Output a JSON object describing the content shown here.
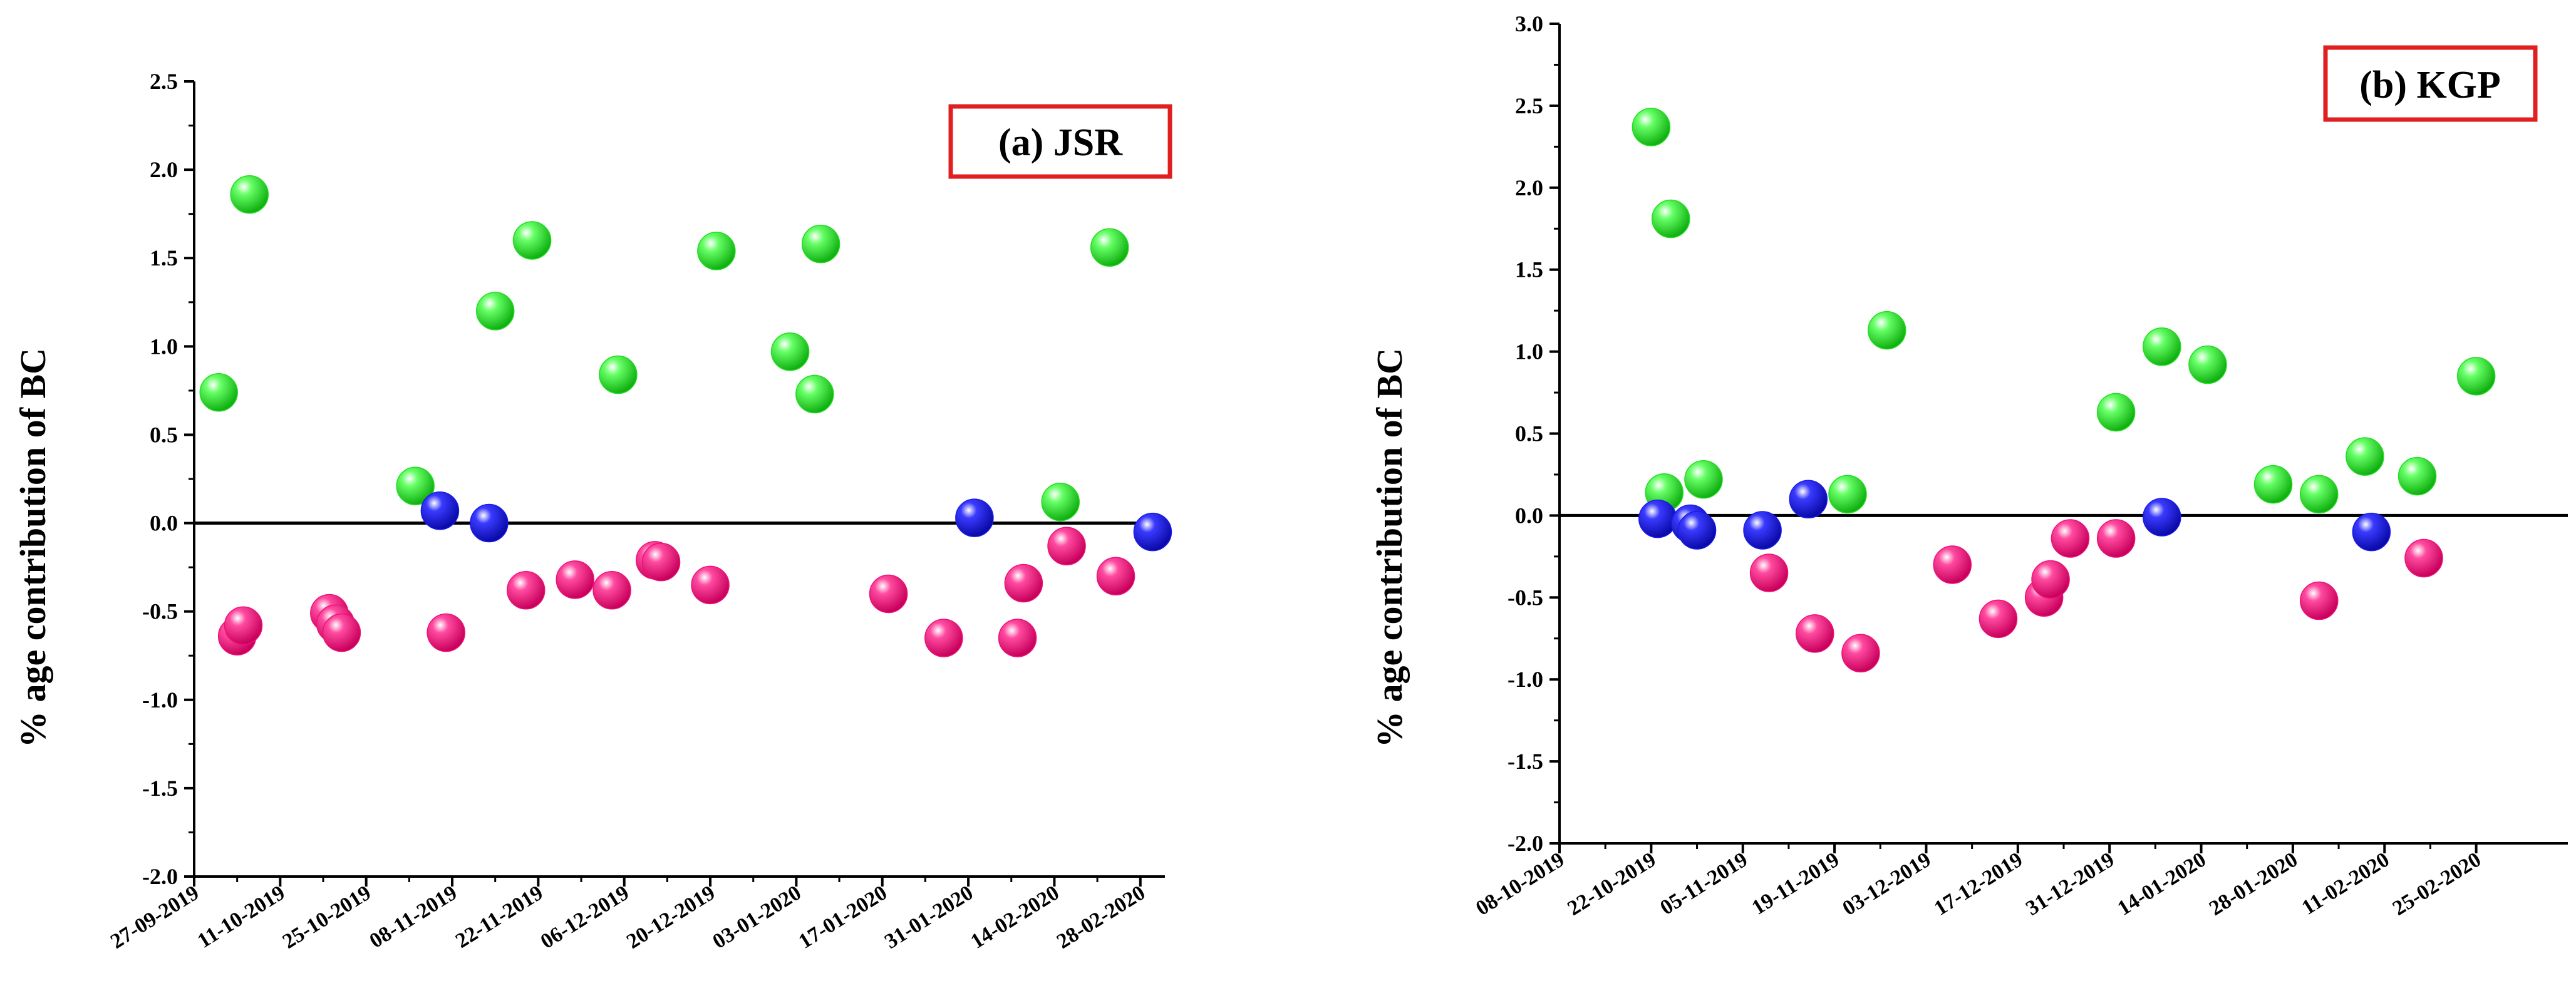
{
  "colors": {
    "positive": "#22dd22",
    "negative": "#ee1177",
    "near_zero": "#1a1aee",
    "title_box": "#e02020"
  },
  "chart_data": [
    {
      "type": "scatter",
      "title": "(a) JSR",
      "ylabel": "% age contribution of BC",
      "ylim": [
        -2.0,
        2.5
      ],
      "yticks": [
        "-2.0",
        "-1.5",
        "-1.0",
        "-0.5",
        "0.0",
        "0.5",
        "1.0",
        "1.5",
        "2.0",
        "2.5"
      ],
      "xlim_days": [
        0,
        158
      ],
      "xtick_labels": [
        "27-09-2019",
        "11-10-2019",
        "25-10-2019",
        "08-11-2019",
        "22-11-2019",
        "06-12-2019",
        "20-12-2019",
        "03-01-2020",
        "17-01-2020",
        "31-01-2020",
        "14-02-2020",
        "28-02-2020"
      ],
      "reference_line": 0,
      "series": [
        {
          "name": "positive",
          "color_key": "positive",
          "points": [
            {
              "x": 4,
              "y": 0.74
            },
            {
              "x": 9,
              "y": 1.86
            },
            {
              "x": 36,
              "y": 0.21
            },
            {
              "x": 49,
              "y": 1.2
            },
            {
              "x": 55,
              "y": 1.6
            },
            {
              "x": 69,
              "y": 0.84
            },
            {
              "x": 85,
              "y": 1.54
            },
            {
              "x": 97,
              "y": 0.97
            },
            {
              "x": 101,
              "y": 0.73
            },
            {
              "x": 102,
              "y": 1.58
            },
            {
              "x": 141,
              "y": 0.12
            },
            {
              "x": 149,
              "y": 1.56
            }
          ]
        },
        {
          "name": "near zero",
          "color_key": "near_zero",
          "points": [
            {
              "x": 40,
              "y": 0.07
            },
            {
              "x": 48,
              "y": 0.0
            },
            {
              "x": 127,
              "y": 0.03
            },
            {
              "x": 156,
              "y": -0.05
            }
          ]
        },
        {
          "name": "negative",
          "color_key": "negative",
          "points": [
            {
              "x": 7,
              "y": -0.64
            },
            {
              "x": 8,
              "y": -0.58
            },
            {
              "x": 22,
              "y": -0.51
            },
            {
              "x": 23,
              "y": -0.57
            },
            {
              "x": 24,
              "y": -0.62
            },
            {
              "x": 41,
              "y": -0.62
            },
            {
              "x": 54,
              "y": -0.38
            },
            {
              "x": 62,
              "y": -0.32
            },
            {
              "x": 68,
              "y": -0.38
            },
            {
              "x": 75,
              "y": -0.21
            },
            {
              "x": 76,
              "y": -0.22
            },
            {
              "x": 84,
              "y": -0.35
            },
            {
              "x": 113,
              "y": -0.4
            },
            {
              "x": 122,
              "y": -0.65
            },
            {
              "x": 134,
              "y": -0.65
            },
            {
              "x": 135,
              "y": -0.34
            },
            {
              "x": 142,
              "y": -0.13
            },
            {
              "x": 150,
              "y": -0.3
            }
          ]
        }
      ]
    },
    {
      "type": "scatter",
      "title": "(b) KGP",
      "ylabel": "% age contribution of BC",
      "ylim": [
        -2.0,
        3.0
      ],
      "yticks": [
        "-2.0",
        "-1.5",
        "-1.0",
        "-0.5",
        "0.0",
        "0.5",
        "1.0",
        "1.5",
        "2.0",
        "2.5",
        "3.0"
      ],
      "xlim_days": [
        0,
        154
      ],
      "xtick_labels": [
        "08-10-2019",
        "22-10-2019",
        "05-11-2019",
        "19-11-2019",
        "03-12-2019",
        "17-12-2019",
        "31-12-2019",
        "14-01-2020",
        "28-01-2020",
        "11-02-2020",
        "25-02-2020"
      ],
      "reference_line": 0,
      "series": [
        {
          "name": "positive",
          "color_key": "positive",
          "points": [
            {
              "x": 14,
              "y": 2.37
            },
            {
              "x": 16,
              "y": 0.14
            },
            {
              "x": 17,
              "y": 1.81
            },
            {
              "x": 22,
              "y": 0.22
            },
            {
              "x": 44,
              "y": 0.13
            },
            {
              "x": 50,
              "y": 1.13
            },
            {
              "x": 85,
              "y": 0.63
            },
            {
              "x": 92,
              "y": 1.03
            },
            {
              "x": 99,
              "y": 0.92
            },
            {
              "x": 109,
              "y": 0.19
            },
            {
              "x": 116,
              "y": 0.13
            },
            {
              "x": 123,
              "y": 0.36
            },
            {
              "x": 131,
              "y": 0.24
            },
            {
              "x": 140,
              "y": 0.85
            }
          ]
        },
        {
          "name": "near zero",
          "color_key": "near_zero",
          "points": [
            {
              "x": 15,
              "y": -0.02
            },
            {
              "x": 20,
              "y": -0.05
            },
            {
              "x": 21,
              "y": -0.09
            },
            {
              "x": 31,
              "y": -0.09
            },
            {
              "x": 38,
              "y": 0.1
            },
            {
              "x": 92,
              "y": -0.01
            },
            {
              "x": 124,
              "y": -0.1
            }
          ]
        },
        {
          "name": "negative",
          "color_key": "negative",
          "points": [
            {
              "x": 32,
              "y": -0.35
            },
            {
              "x": 39,
              "y": -0.72
            },
            {
              "x": 46,
              "y": -0.84
            },
            {
              "x": 60,
              "y": -0.3
            },
            {
              "x": 67,
              "y": -0.63
            },
            {
              "x": 74,
              "y": -0.5
            },
            {
              "x": 75,
              "y": -0.39
            },
            {
              "x": 78,
              "y": -0.14
            },
            {
              "x": 85,
              "y": -0.14
            },
            {
              "x": 116,
              "y": -0.52
            },
            {
              "x": 132,
              "y": -0.26
            }
          ]
        }
      ]
    }
  ]
}
